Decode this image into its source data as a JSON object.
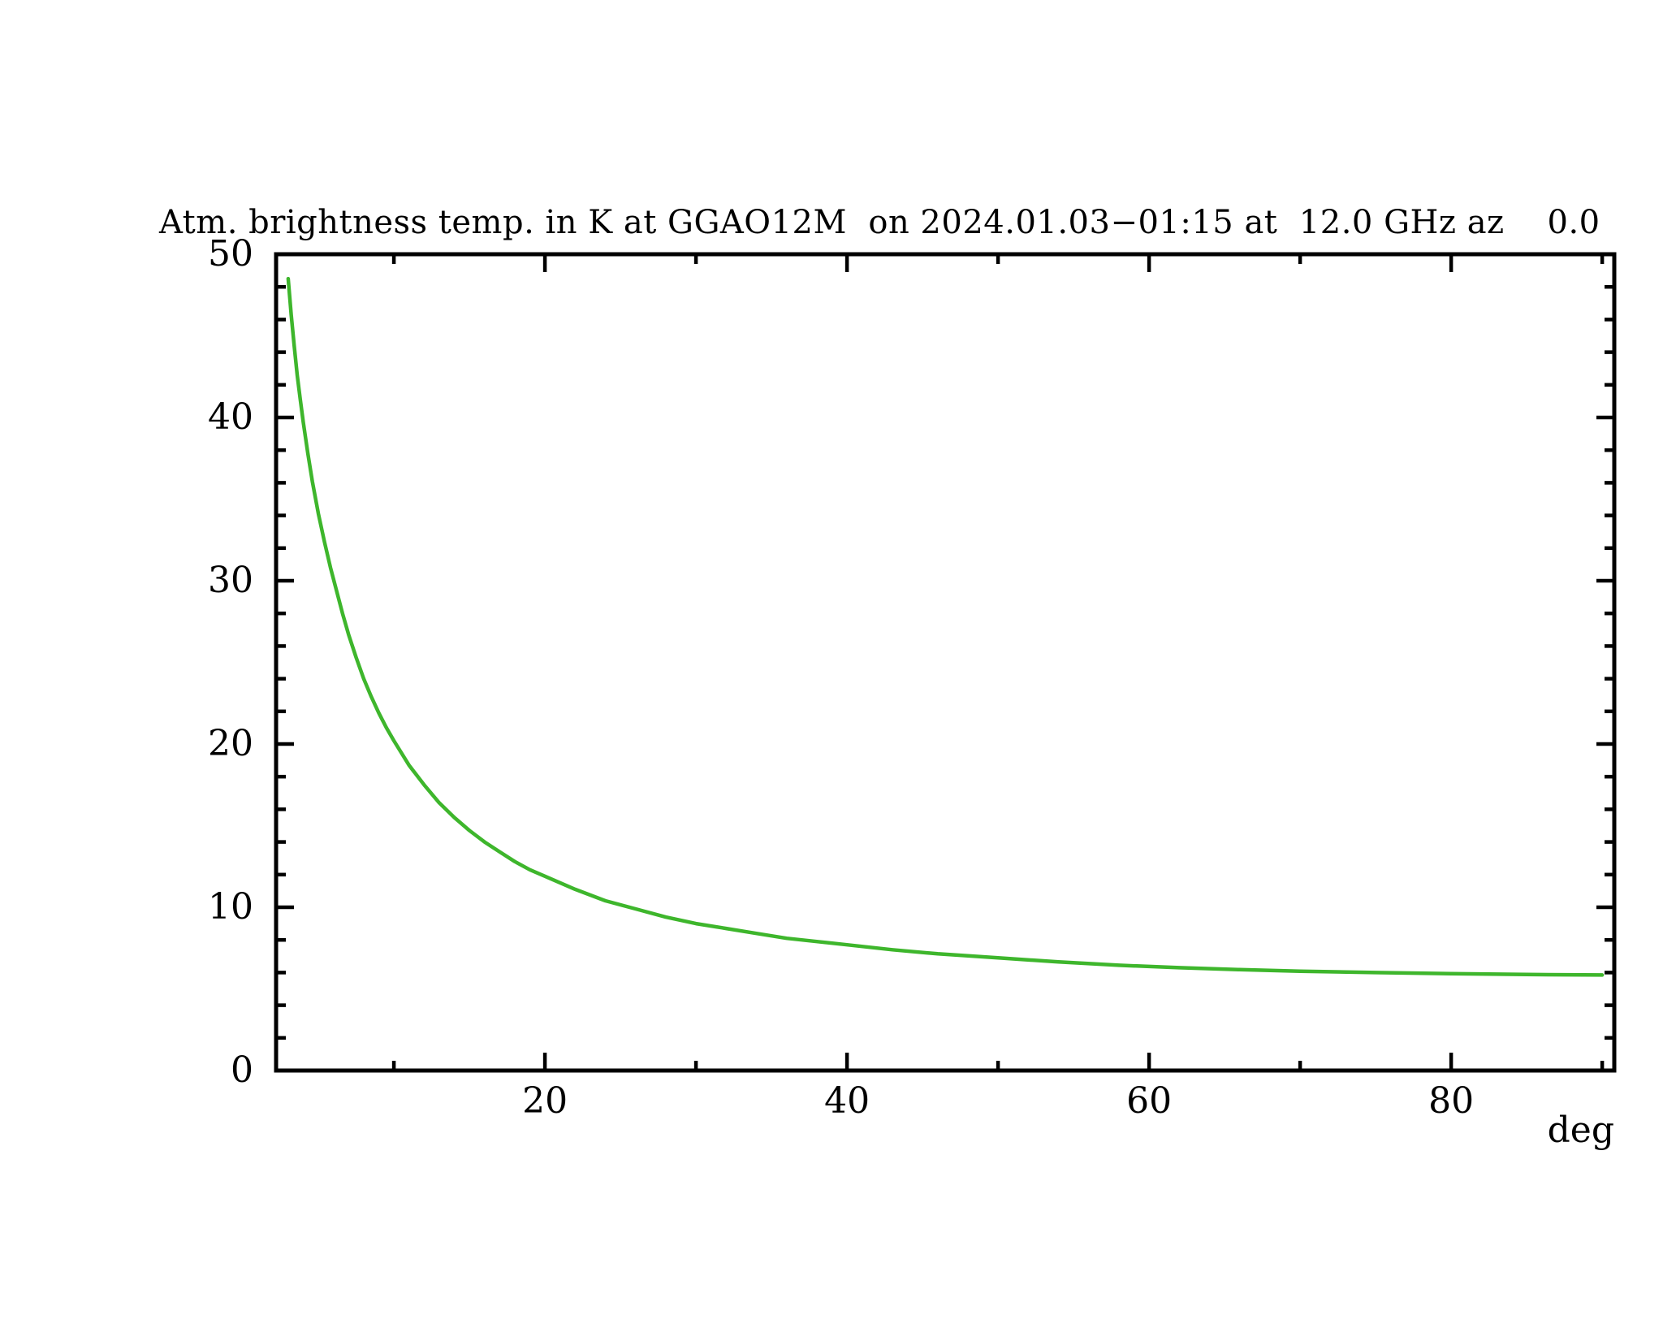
{
  "chart_data": {
    "type": "line",
    "title": "Atm. brightness temp. in K at GGAO12M  on 2024.01.03−01:15 at  12.0 GHz az    0.0",
    "xlabel": "deg",
    "ylabel": "",
    "grid": false,
    "legend": "none",
    "x_axis": {
      "min": 2.2,
      "max": 90.8,
      "major_ticks": [
        20,
        40,
        60,
        80
      ],
      "minor_tick_step": 10,
      "unit": "deg"
    },
    "y_axis": {
      "min": 0,
      "max": 50,
      "major_ticks": [
        0,
        10,
        20,
        30,
        40,
        50
      ],
      "minor_tick_step": 2
    },
    "series": [
      {
        "name": "atmospheric-brightness-temperature",
        "color": "#3eb62c",
        "points": [
          [
            3.0,
            48.5
          ],
          [
            3.2,
            46.3
          ],
          [
            3.4,
            44.4
          ],
          [
            3.6,
            42.6
          ],
          [
            3.8,
            41.1
          ],
          [
            4.0,
            39.7
          ],
          [
            4.3,
            37.8
          ],
          [
            4.6,
            36.1
          ],
          [
            5.0,
            34.1
          ],
          [
            5.4,
            32.4
          ],
          [
            5.8,
            30.8
          ],
          [
            6.2,
            29.4
          ],
          [
            6.6,
            28.0
          ],
          [
            7.0,
            26.7
          ],
          [
            7.5,
            25.3
          ],
          [
            8.0,
            24.0
          ],
          [
            8.5,
            22.9
          ],
          [
            9.0,
            21.9
          ],
          [
            9.5,
            21.0
          ],
          [
            10,
            20.2
          ],
          [
            11,
            18.7
          ],
          [
            12,
            17.5
          ],
          [
            13,
            16.4
          ],
          [
            14,
            15.5
          ],
          [
            15,
            14.7
          ],
          [
            16,
            14.0
          ],
          [
            17,
            13.4
          ],
          [
            18,
            12.8
          ],
          [
            19,
            12.3
          ],
          [
            20,
            11.9
          ],
          [
            22,
            11.1
          ],
          [
            24,
            10.4
          ],
          [
            26,
            9.9
          ],
          [
            28,
            9.4
          ],
          [
            30,
            9.0
          ],
          [
            32,
            8.7
          ],
          [
            34,
            8.4
          ],
          [
            36,
            8.1
          ],
          [
            38,
            7.9
          ],
          [
            40,
            7.7
          ],
          [
            43,
            7.4
          ],
          [
            46,
            7.15
          ],
          [
            50,
            6.9
          ],
          [
            54,
            6.65
          ],
          [
            58,
            6.45
          ],
          [
            62,
            6.3
          ],
          [
            66,
            6.18
          ],
          [
            70,
            6.08
          ],
          [
            75,
            6.0
          ],
          [
            80,
            5.93
          ],
          [
            85,
            5.88
          ],
          [
            90,
            5.85
          ]
        ]
      }
    ]
  },
  "colors": {
    "background": "#ffffff",
    "axis": "#000000",
    "line": "#3eb62c"
  }
}
